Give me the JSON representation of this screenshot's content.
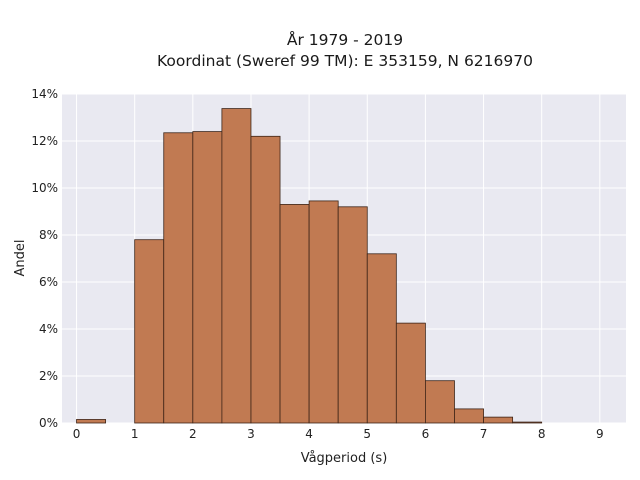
{
  "chart_data": {
    "type": "bar",
    "title_lines": [
      "År 1979 - 2019",
      "Koordinat (Sweref 99 TM): E 353159, N 6216970"
    ],
    "xlabel": "Vågperiod (s)",
    "ylabel": "Andel",
    "xlim": [
      -0.25,
      9.45
    ],
    "ylim": [
      0,
      14
    ],
    "x_ticks": [
      0,
      1,
      2,
      3,
      4,
      5,
      6,
      7,
      8,
      9
    ],
    "y_ticks": [
      0,
      2,
      4,
      6,
      8,
      10,
      12,
      14
    ],
    "y_tick_labels": [
      "0%",
      "2%",
      "4%",
      "6%",
      "8%",
      "10%",
      "12%",
      "14%"
    ],
    "bin_width": 0.5,
    "bins": [
      {
        "x0": 0.0,
        "value": 0.15
      },
      {
        "x0": 1.0,
        "value": 7.8
      },
      {
        "x0": 1.5,
        "value": 12.35
      },
      {
        "x0": 2.0,
        "value": 12.4
      },
      {
        "x0": 2.5,
        "value": 13.38
      },
      {
        "x0": 3.0,
        "value": 12.2
      },
      {
        "x0": 3.5,
        "value": 9.3
      },
      {
        "x0": 4.0,
        "value": 9.45
      },
      {
        "x0": 4.5,
        "value": 9.2
      },
      {
        "x0": 5.0,
        "value": 7.2
      },
      {
        "x0": 5.5,
        "value": 4.25
      },
      {
        "x0": 6.0,
        "value": 1.8
      },
      {
        "x0": 6.5,
        "value": 0.6
      },
      {
        "x0": 7.0,
        "value": 0.25
      },
      {
        "x0": 7.5,
        "value": 0.04
      }
    ],
    "grid": true,
    "colors": {
      "bar_fill": "#c17a52",
      "bar_stroke": "#3d2417",
      "plot_background": "#e9e9f1",
      "grid": "#ffffff"
    }
  }
}
